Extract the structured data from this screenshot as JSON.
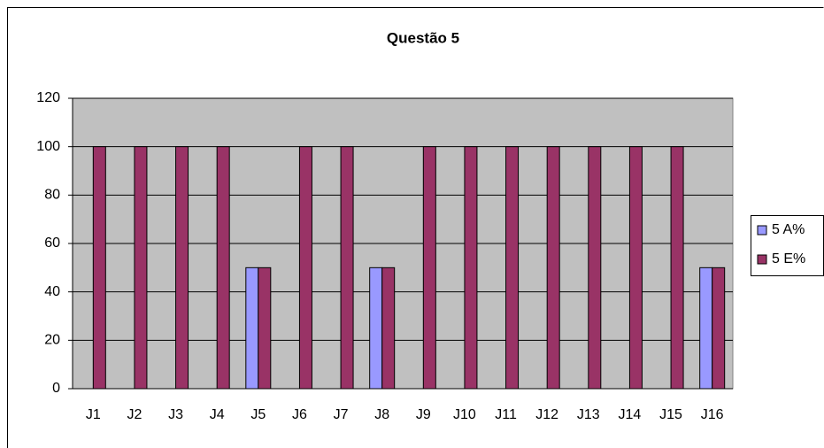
{
  "chart_data": {
    "type": "bar",
    "title": "Questão 5",
    "categories": [
      "J1",
      "J2",
      "J3",
      "J4",
      "J5",
      "J6",
      "J7",
      "J8",
      "J9",
      "J10",
      "J11",
      "J12",
      "J13",
      "J14",
      "J15",
      "J16"
    ],
    "series": [
      {
        "name": "5 A%",
        "color": "#9999ff",
        "values": [
          0,
          0,
          0,
          0,
          50,
          0,
          0,
          50,
          0,
          0,
          0,
          0,
          0,
          0,
          0,
          50
        ]
      },
      {
        "name": "5 E%",
        "color": "#993366",
        "values": [
          100,
          100,
          100,
          100,
          50,
          100,
          100,
          50,
          100,
          100,
          100,
          100,
          100,
          100,
          100,
          50
        ]
      }
    ],
    "ylim": [
      0,
      120
    ],
    "yticks": [
      0,
      20,
      40,
      60,
      80,
      100,
      120
    ],
    "grid": true,
    "legend": "right"
  }
}
